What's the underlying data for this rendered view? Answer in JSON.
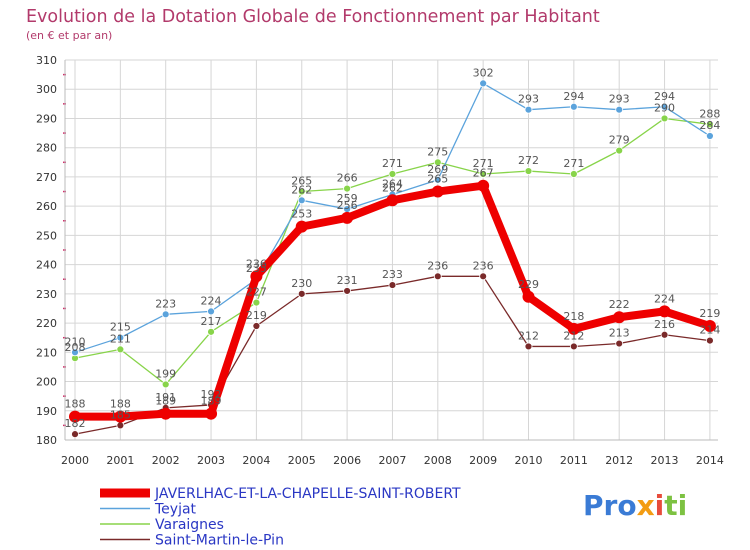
{
  "chart_data": {
    "type": "line",
    "title": "Evolution de la Dotation Globale de Fonctionnement par Habitant",
    "subtitle": "(en € et par an)",
    "xlabel": "",
    "ylabel": "",
    "categories": [
      "2000",
      "2001",
      "2002",
      "2003",
      "2004",
      "2005",
      "2006",
      "2007",
      "2008",
      "2009",
      "2010",
      "2011",
      "2012",
      "2013",
      "2014"
    ],
    "ylim": [
      180,
      310
    ],
    "yticks": [
      180,
      190,
      200,
      210,
      220,
      230,
      240,
      250,
      260,
      270,
      280,
      290,
      300,
      310
    ],
    "grid": true,
    "legend_position": "bottom",
    "series": [
      {
        "name": "JAVERLHAC-ET-LA-CHAPELLE-SAINT-ROBERT",
        "color": "#ee0000",
        "values": [
          188,
          188,
          189,
          189,
          236,
          253,
          256,
          262,
          265,
          267,
          229,
          218,
          222,
          224,
          219
        ]
      },
      {
        "name": "Teyjat",
        "color": "#5ba3dc",
        "values": [
          210,
          215,
          223,
          224,
          235,
          262,
          259,
          264,
          269,
          302,
          293,
          294,
          293,
          294,
          284
        ]
      },
      {
        "name": "Varaignes",
        "color": "#88d44a",
        "values": [
          208,
          211,
          199,
          217,
          227,
          265,
          266,
          271,
          275,
          271,
          272,
          271,
          279,
          290,
          288
        ]
      },
      {
        "name": "Saint-Martin-le-Pin",
        "color": "#7a2a2a",
        "values": [
          182,
          185,
          191,
          192,
          219,
          230,
          231,
          233,
          236,
          236,
          212,
          212,
          213,
          216,
          214
        ]
      }
    ]
  },
  "logo": {
    "p1": "Pro",
    "x": "x",
    "i": "i",
    "ti": "ti"
  },
  "colors": {
    "title": "#b23a6b",
    "grid": "#d6d6d6",
    "axis_ticks": "#d1306b",
    "background": "#ffffff"
  }
}
